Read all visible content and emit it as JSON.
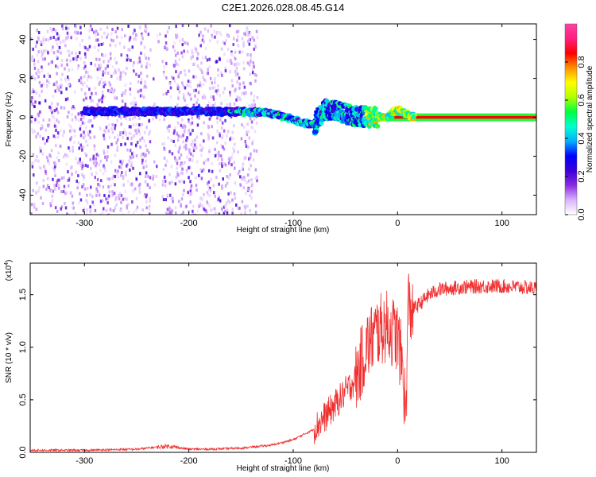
{
  "figure": {
    "title": "C2E1.2026.028.08.45.G14"
  },
  "chart_data": [
    {
      "type": "heatmap",
      "xlabel": "Height of straight line (km)",
      "ylabel": "Frequency (Hz)",
      "xlim": [
        -352,
        133
      ],
      "ylim": [
        -50,
        48
      ],
      "xticks": [
        -300,
        -200,
        -100,
        0,
        100
      ],
      "yticks": [
        -40,
        -20,
        0,
        20,
        40
      ],
      "colorbar": {
        "label": "Normalized spectral amplitude",
        "range": [
          0.0,
          1.0
        ],
        "ticks": [
          0.0,
          0.2,
          0.4,
          0.6,
          0.8
        ],
        "colors": [
          "#ffffff",
          "#d9b3ff",
          "#8a2be2",
          "#3b00d9",
          "#0000ff",
          "#00b0ff",
          "#00ffd0",
          "#00ff40",
          "#b0ff00",
          "#ffff00",
          "#ff9000",
          "#ff0000",
          "#ff2080",
          "#ff40a0"
        ]
      },
      "features": {
        "noise_region_x": [
          -352,
          -145
        ],
        "carrier_line": {
          "x_start": -300,
          "x_end": 133,
          "freq": 0
        },
        "doppler_track": [
          [
            -300,
            3
          ],
          [
            -240,
            3
          ],
          [
            -180,
            3
          ],
          [
            -150,
            3
          ],
          [
            -120,
            2
          ],
          [
            -100,
            -1
          ],
          [
            -90,
            -3
          ],
          [
            -80,
            -4
          ],
          [
            -70,
            4
          ],
          [
            -60,
            3
          ],
          [
            -50,
            2
          ],
          [
            -40,
            1
          ],
          [
            -30,
            0
          ],
          [
            -20,
            0
          ],
          [
            -10,
            0
          ],
          [
            -5,
            2
          ],
          [
            0,
            4
          ],
          [
            10,
            1
          ],
          [
            20,
            0
          ]
        ]
      }
    },
    {
      "type": "line",
      "xlabel": "Height of straight line (km)",
      "ylabel": "SNR (10 * v/v)",
      "yscale_label": "(x10",
      "yscale_exp": "4",
      "yscale_close": ")",
      "xlim": [
        -352,
        133
      ],
      "ylim": [
        0,
        1.8
      ],
      "xticks": [
        -300,
        -200,
        -100,
        0,
        100
      ],
      "yticks": [
        "0.0",
        "0.5",
        "1.0",
        "1.5"
      ],
      "color": "#f03030",
      "x": [
        -352,
        -300,
        -250,
        -220,
        -200,
        -180,
        -150,
        -120,
        -100,
        -80,
        -60,
        -40,
        -30,
        -20,
        -10,
        0,
        5,
        8,
        10,
        12,
        20,
        30,
        40,
        60,
        80,
        100,
        120,
        133
      ],
      "y": [
        0.02,
        0.02,
        0.03,
        0.06,
        0.03,
        0.03,
        0.04,
        0.07,
        0.12,
        0.22,
        0.45,
        0.7,
        1.0,
        1.15,
        1.2,
        1.1,
        0.8,
        0.3,
        1.45,
        1.35,
        1.4,
        1.5,
        1.55,
        1.57,
        1.58,
        1.58,
        1.57,
        1.56
      ]
    }
  ]
}
